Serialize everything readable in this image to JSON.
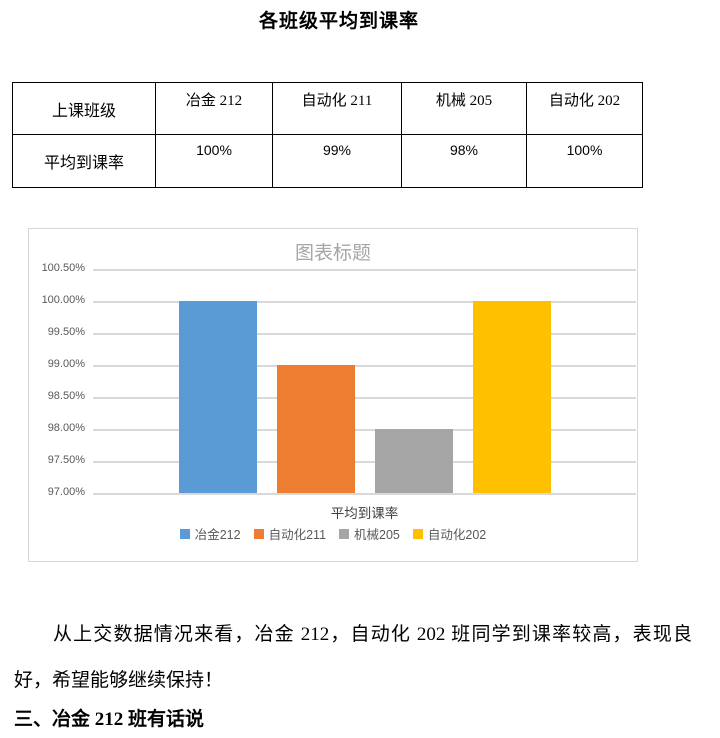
{
  "document": {
    "title": "各班级平均到课率",
    "paragraph": "从上交数据情况来看，冶金 212，自动化 202 班同学到课率较高，表现良好，希望能够继续保持！",
    "section_heading": "三、冶金 212 班有话说"
  },
  "table": {
    "rows": [
      {
        "header": "上课班级",
        "values": [
          "冶金 212",
          "自动化 211",
          "机械 205",
          "自动化 202"
        ]
      },
      {
        "header": "平均到课率",
        "values": [
          "100%",
          "99%",
          "98%",
          "100%"
        ]
      }
    ]
  },
  "chart_data": {
    "type": "bar",
    "title": "图表标题",
    "x_category": "平均到课率",
    "categories": [
      "平均到课率"
    ],
    "series": [
      {
        "name": "冶金212",
        "value": 1.0,
        "color": "#5b9bd5"
      },
      {
        "name": "自动化211",
        "value": 0.99,
        "color": "#ed7d31"
      },
      {
        "name": "机械205",
        "value": 0.98,
        "color": "#a5a5a5"
      },
      {
        "name": "自动化202",
        "value": 1.0,
        "color": "#ffc000"
      }
    ],
    "y_axis": {
      "min": 0.97,
      "max": 1.005,
      "step": 0.005,
      "tick_labels_top_to_bottom": [
        "100.50%",
        "100.00%",
        "99.50%",
        "99.00%",
        "98.50%",
        "98.00%",
        "97.50%",
        "97.00%"
      ]
    },
    "legend_position": "bottom",
    "grid": true,
    "colors": {
      "grid": "#d9d9d9",
      "axis_text": "#595959",
      "title_text": "#a6a6a6"
    }
  }
}
